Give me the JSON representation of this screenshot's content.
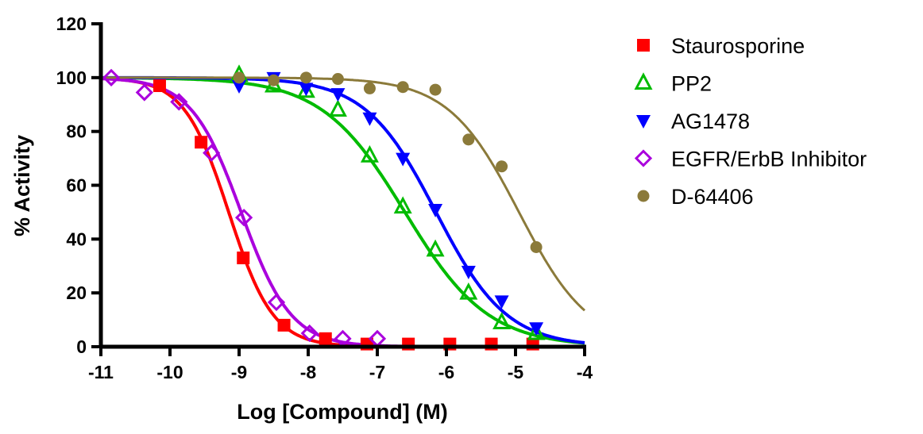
{
  "chart_data": {
    "type": "scatter",
    "xlabel": "Log [Compound] (M)",
    "ylabel": "% Activity",
    "xlim": [
      -11,
      -4
    ],
    "ylim": [
      0,
      120
    ],
    "xticks": [
      "-11",
      "-10",
      "-9",
      "-8",
      "-7",
      "-6",
      "-5",
      "-4"
    ],
    "yticks": [
      "0",
      "20",
      "40",
      "60",
      "80",
      "100",
      "120"
    ],
    "grid": false,
    "legend_position": "right",
    "series": [
      {
        "name": "Staurosporine",
        "color": "#ff0000",
        "marker": "filled-square",
        "x": [
          -10.15,
          -9.55,
          -8.94,
          -8.35,
          -7.75,
          -7.15,
          -6.55,
          -5.95,
          -5.35,
          -4.75
        ],
        "y": [
          97,
          76,
          33,
          8,
          3,
          1,
          1,
          1,
          1,
          1
        ],
        "fit": {
          "top": 100,
          "bottom": 0,
          "logIC50": -9.15,
          "hill": 1.35
        }
      },
      {
        "name": "PP2",
        "color": "#00bb00",
        "marker": "open-triangle-up",
        "x": [
          -9.0,
          -8.5,
          -8.03,
          -7.57,
          -7.11,
          -6.63,
          -6.16,
          -5.68,
          -5.2,
          -4.7
        ],
        "y": [
          101,
          97,
          95,
          88,
          71,
          52,
          36,
          20,
          9,
          5
        ],
        "fit": {
          "top": 100,
          "bottom": 0,
          "logIC50": -6.6,
          "hill": 0.72
        }
      },
      {
        "name": "AG1478",
        "color": "#0000ff",
        "marker": "filled-triangle-down",
        "x": [
          -9.0,
          -8.5,
          -8.03,
          -7.57,
          -7.11,
          -6.63,
          -6.16,
          -5.68,
          -5.2,
          -4.7
        ],
        "y": [
          97,
          100,
          96,
          94,
          85,
          70,
          51,
          28,
          17,
          7
        ],
        "fit": {
          "top": 100,
          "bottom": 0,
          "logIC50": -6.15,
          "hill": 0.85
        }
      },
      {
        "name": "EGFR/ErbB Inhibitor",
        "color": "#aa00dd",
        "marker": "open-diamond",
        "x": [
          -10.85,
          -10.37,
          -9.87,
          -9.4,
          -8.93,
          -8.46,
          -7.98,
          -7.5,
          -7.0
        ],
        "y": [
          100,
          94.5,
          91,
          72,
          48,
          16.5,
          5,
          3,
          3
        ],
        "fit": {
          "top": 100,
          "bottom": 0,
          "logIC50": -8.97,
          "hill": 1.2
        }
      },
      {
        "name": "D-64406",
        "color": "#8b7a3a",
        "marker": "filled-circle",
        "x": [
          -9.0,
          -8.5,
          -8.03,
          -7.57,
          -7.11,
          -6.63,
          -6.16,
          -5.68,
          -5.2,
          -4.7
        ],
        "y": [
          100,
          99,
          100,
          99.5,
          96,
          96.5,
          95.5,
          77,
          67,
          37
        ],
        "fit": {
          "top": 100,
          "bottom": 0,
          "logIC50": -4.95,
          "hill": 0.85
        }
      }
    ]
  }
}
